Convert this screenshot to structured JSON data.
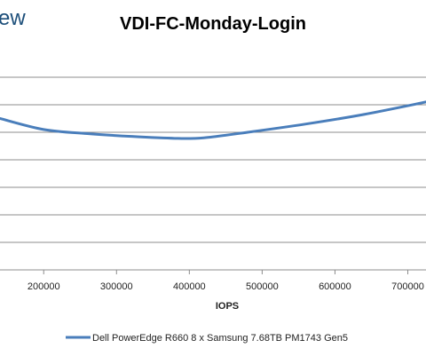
{
  "brand": {
    "text": "ew",
    "color": "#1d4f7a"
  },
  "chart_data": {
    "type": "line",
    "title": "VDI-FC-Monday-Login",
    "xlabel": "IOPS",
    "ylabel": "",
    "x_ticks": [
      200000,
      300000,
      400000,
      500000,
      600000,
      700000
    ],
    "x_tick_labels": [
      "200000",
      "300000",
      "400000",
      "500000",
      "600000",
      "700000"
    ],
    "xlim": [
      140000,
      725000
    ],
    "ylim": [
      0,
      8
    ],
    "gridlines": [
      1,
      2,
      3,
      4,
      5,
      6,
      7
    ],
    "grid": true,
    "legend": "bottom",
    "series": [
      {
        "name": "Dell PowerEdge R660 8 x Samsung 7.68TB PM1743 Gen5",
        "color": "#4a7ebb",
        "x": [
          140000,
          200000,
          260000,
          320000,
          380000,
          420000,
          480000,
          560000,
          640000,
          725000
        ],
        "values": [
          5.5,
          5.1,
          4.95,
          4.85,
          4.78,
          4.8,
          5.0,
          5.3,
          5.65,
          6.1
        ]
      }
    ]
  }
}
